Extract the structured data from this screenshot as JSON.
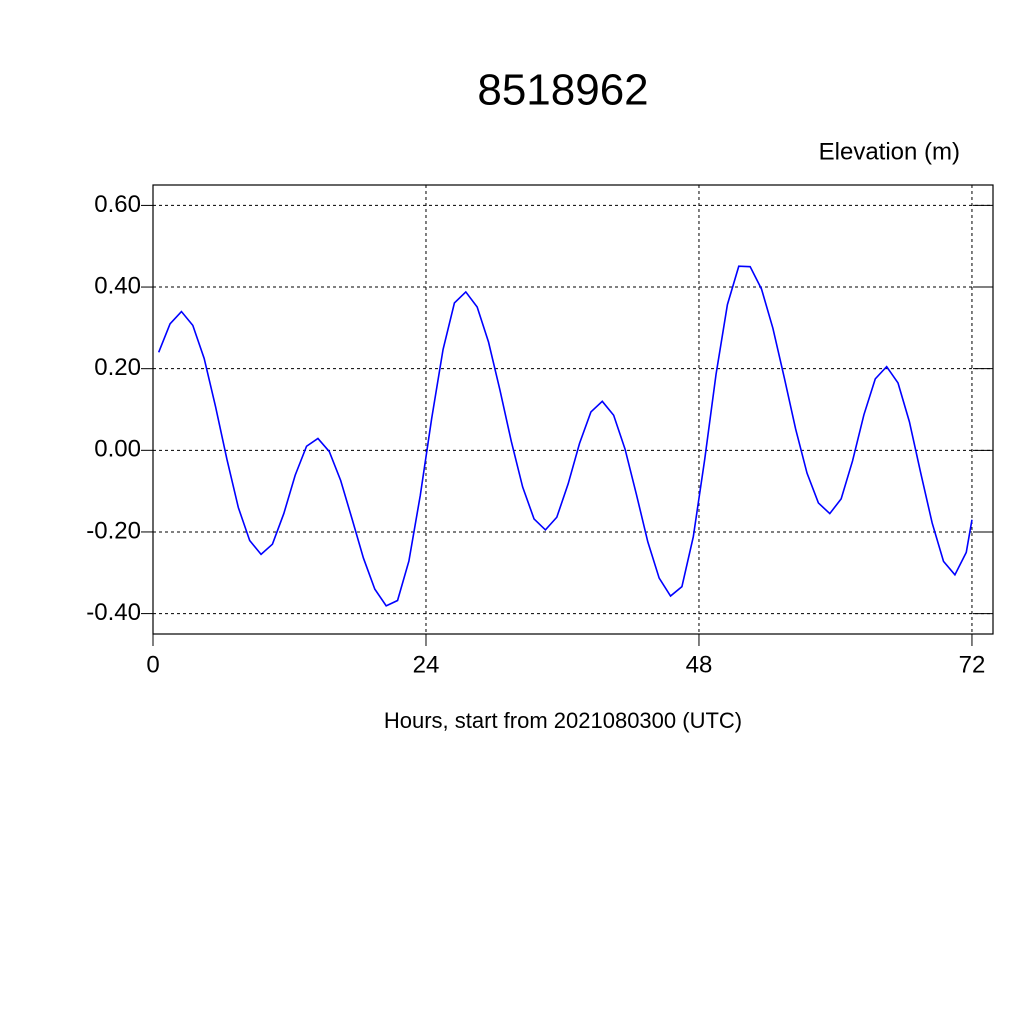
{
  "chart_data": {
    "type": "line",
    "title": "8518962",
    "y_label": "Elevation (m)",
    "x_label": "Hours, start from 2021080300 (UTC)",
    "x": [
      0.5,
      1.5,
      2.5,
      3.5,
      4.5,
      5.5,
      6.5,
      7.5,
      8.5,
      9.5,
      10.5,
      11.5,
      12.5,
      13.5,
      14.5,
      15.5,
      16.5,
      17.5,
      18.5,
      19.5,
      20.5,
      21.5,
      22.5,
      23.5,
      24.5,
      25.5,
      26.5,
      27.5,
      28.5,
      29.5,
      30.5,
      31.5,
      32.5,
      33.5,
      34.5,
      35.5,
      36.5,
      37.5,
      38.5,
      39.5,
      40.5,
      41.5,
      42.5,
      43.5,
      44.5,
      45.5,
      46.5,
      47.5,
      48.5,
      49.5,
      50.5,
      51.5,
      52.5,
      53.5,
      54.5,
      55.5,
      56.5,
      57.5,
      58.5,
      59.5,
      60.5,
      61.5,
      62.5,
      63.5,
      64.5,
      65.5,
      66.5,
      67.5,
      68.5,
      69.5,
      70.5,
      71.5,
      72
    ],
    "series": [
      {
        "color": "#0000ff",
        "values": [
          0.24,
          0.31,
          0.34,
          0.306,
          0.225,
          0.107,
          -0.022,
          -0.14,
          -0.221,
          -0.255,
          -0.23,
          -0.155,
          -0.061,
          0.01,
          0.029,
          -0.003,
          -0.074,
          -0.168,
          -0.264,
          -0.34,
          -0.381,
          -0.368,
          -0.271,
          -0.11,
          0.078,
          0.247,
          0.361,
          0.388,
          0.351,
          0.265,
          0.148,
          0.022,
          -0.09,
          -0.168,
          -0.195,
          -0.164,
          -0.082,
          0.017,
          0.094,
          0.12,
          0.086,
          0.003,
          -0.108,
          -0.224,
          -0.313,
          -0.357,
          -0.334,
          -0.212,
          -0.023,
          0.186,
          0.357,
          0.451,
          0.45,
          0.395,
          0.299,
          0.178,
          0.052,
          -0.056,
          -0.129,
          -0.155,
          -0.119,
          -0.026,
          0.087,
          0.175,
          0.205,
          0.165,
          0.07,
          -0.056,
          -0.178,
          -0.272,
          -0.305,
          -0.25,
          -0.17
        ]
      }
    ],
    "xlim": [
      0,
      73.85
    ],
    "ylim": [
      -0.45,
      0.65
    ],
    "xticks": [
      0,
      24,
      48,
      72
    ],
    "yticks": [
      {
        "value": -0.4,
        "label": "-0.40"
      },
      {
        "value": -0.2,
        "label": "-0.20"
      },
      {
        "value": 0,
        "label": "0.00"
      },
      {
        "value": 0.2,
        "label": "0.20"
      },
      {
        "value": 0.4,
        "label": "0.40"
      },
      {
        "value": 0.6,
        "label": "0.60"
      }
    ],
    "grid": true
  }
}
